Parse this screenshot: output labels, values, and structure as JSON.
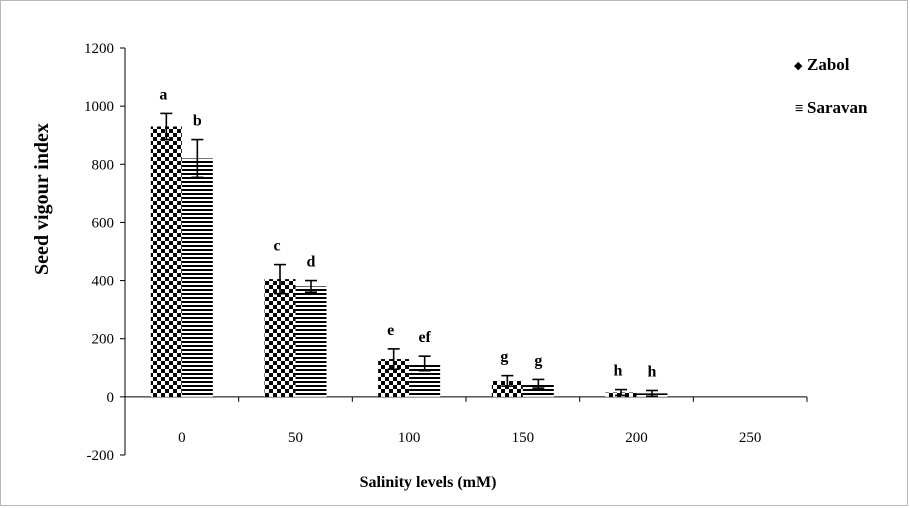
{
  "chart_data": {
    "type": "bar",
    "ylabel": "Seed vigour index",
    "xlabel": "Salinity levels (mM)",
    "categories": [
      "0",
      "50",
      "100",
      "150",
      "200",
      "250"
    ],
    "ylim": [
      -200,
      1200
    ],
    "yticks": [
      "-200",
      "0",
      "200",
      "400",
      "600",
      "800",
      "1000",
      "1200"
    ],
    "grid": false,
    "legend_position": "top-right",
    "series": [
      {
        "name": "Zabol",
        "pattern": "checkerboard",
        "values": [
          930,
          405,
          130,
          55,
          15,
          0
        ],
        "errors": [
          45,
          50,
          35,
          18,
          10,
          0
        ],
        "letters": [
          "a",
          "c",
          "e",
          "g",
          "h",
          ""
        ]
      },
      {
        "name": "Saravan",
        "pattern": "horizontal-lines",
        "values": [
          820,
          380,
          115,
          45,
          12,
          0
        ],
        "errors": [
          65,
          20,
          25,
          15,
          10,
          0
        ],
        "letters": [
          "b",
          "d",
          "ef",
          "g",
          "h",
          ""
        ]
      }
    ],
    "legend_markers": [
      "◆",
      "≡"
    ]
  }
}
